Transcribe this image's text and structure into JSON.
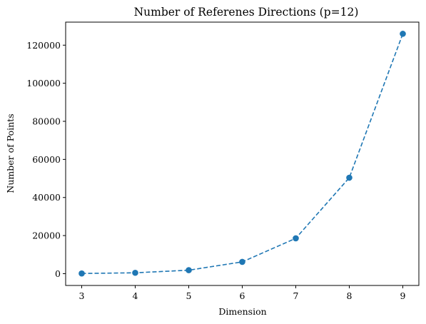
{
  "chart_data": {
    "type": "line",
    "title": "Number of Referenes Directions (p=12)",
    "xlabel": "Dimension",
    "ylabel": "Number of Points",
    "x": [
      3,
      4,
      5,
      6,
      7,
      8,
      9
    ],
    "series": [
      {
        "values": [
          91,
          455,
          1820,
          6188,
          18564,
          50388,
          125970
        ],
        "color": "#1f77b4",
        "line_style": "dashed",
        "marker": "circle"
      }
    ],
    "xticks": [
      "3",
      "4",
      "5",
      "6",
      "7",
      "8",
      "9"
    ],
    "yticks": [
      "0",
      "20000",
      "40000",
      "60000",
      "80000",
      "100000",
      "120000"
    ],
    "xlim": [
      2.7,
      9.3
    ],
    "ylim": [
      -6200,
      132100
    ],
    "grid": false,
    "legend": false
  }
}
